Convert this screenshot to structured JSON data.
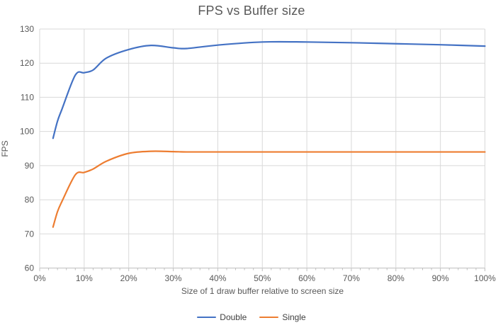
{
  "chart_data": {
    "type": "line",
    "title": "FPS vs Buffer size",
    "xlabel": "Size of 1 draw buffer relative to screen size",
    "ylabel": "FPS",
    "xlim": [
      0,
      100
    ],
    "ylim": [
      60,
      130
    ],
    "grid": true,
    "smooth": true,
    "legend_position": "bottom",
    "x_tick_values": [
      0,
      10,
      20,
      30,
      40,
      50,
      60,
      70,
      80,
      90,
      100
    ],
    "x_tick_labels": [
      "0%",
      "10%",
      "20%",
      "30%",
      "40%",
      "50%",
      "60%",
      "70%",
      "80%",
      "90%",
      "100%"
    ],
    "x_minor_tick_step": 2,
    "y_tick_values": [
      60,
      70,
      80,
      90,
      100,
      110,
      120,
      130
    ],
    "y_tick_labels": [
      "60",
      "70",
      "80",
      "90",
      "100",
      "110",
      "120",
      "130"
    ],
    "x": [
      3,
      4,
      5,
      8,
      10,
      12,
      15,
      20,
      25,
      30,
      33,
      40,
      50,
      60,
      70,
      80,
      90,
      100
    ],
    "series": [
      {
        "name": "Double",
        "color": "#4472C4",
        "values": [
          98,
          103,
          106.5,
          116.5,
          117.2,
          118,
          121.5,
          124,
          125.2,
          124.5,
          124.3,
          125.3,
          126.2,
          126.2,
          126,
          125.7,
          125.4,
          125
        ]
      },
      {
        "name": "Single",
        "color": "#ED7D31",
        "values": [
          72,
          76.5,
          79.5,
          87.3,
          88,
          89,
          91.3,
          93.6,
          94.2,
          94.1,
          94,
          94,
          94,
          94,
          94,
          94,
          94,
          94
        ]
      }
    ]
  },
  "colors": {
    "gridline": "#D9D9D9",
    "axis_line": "#BFBFBF",
    "tick_text": "#595959"
  }
}
